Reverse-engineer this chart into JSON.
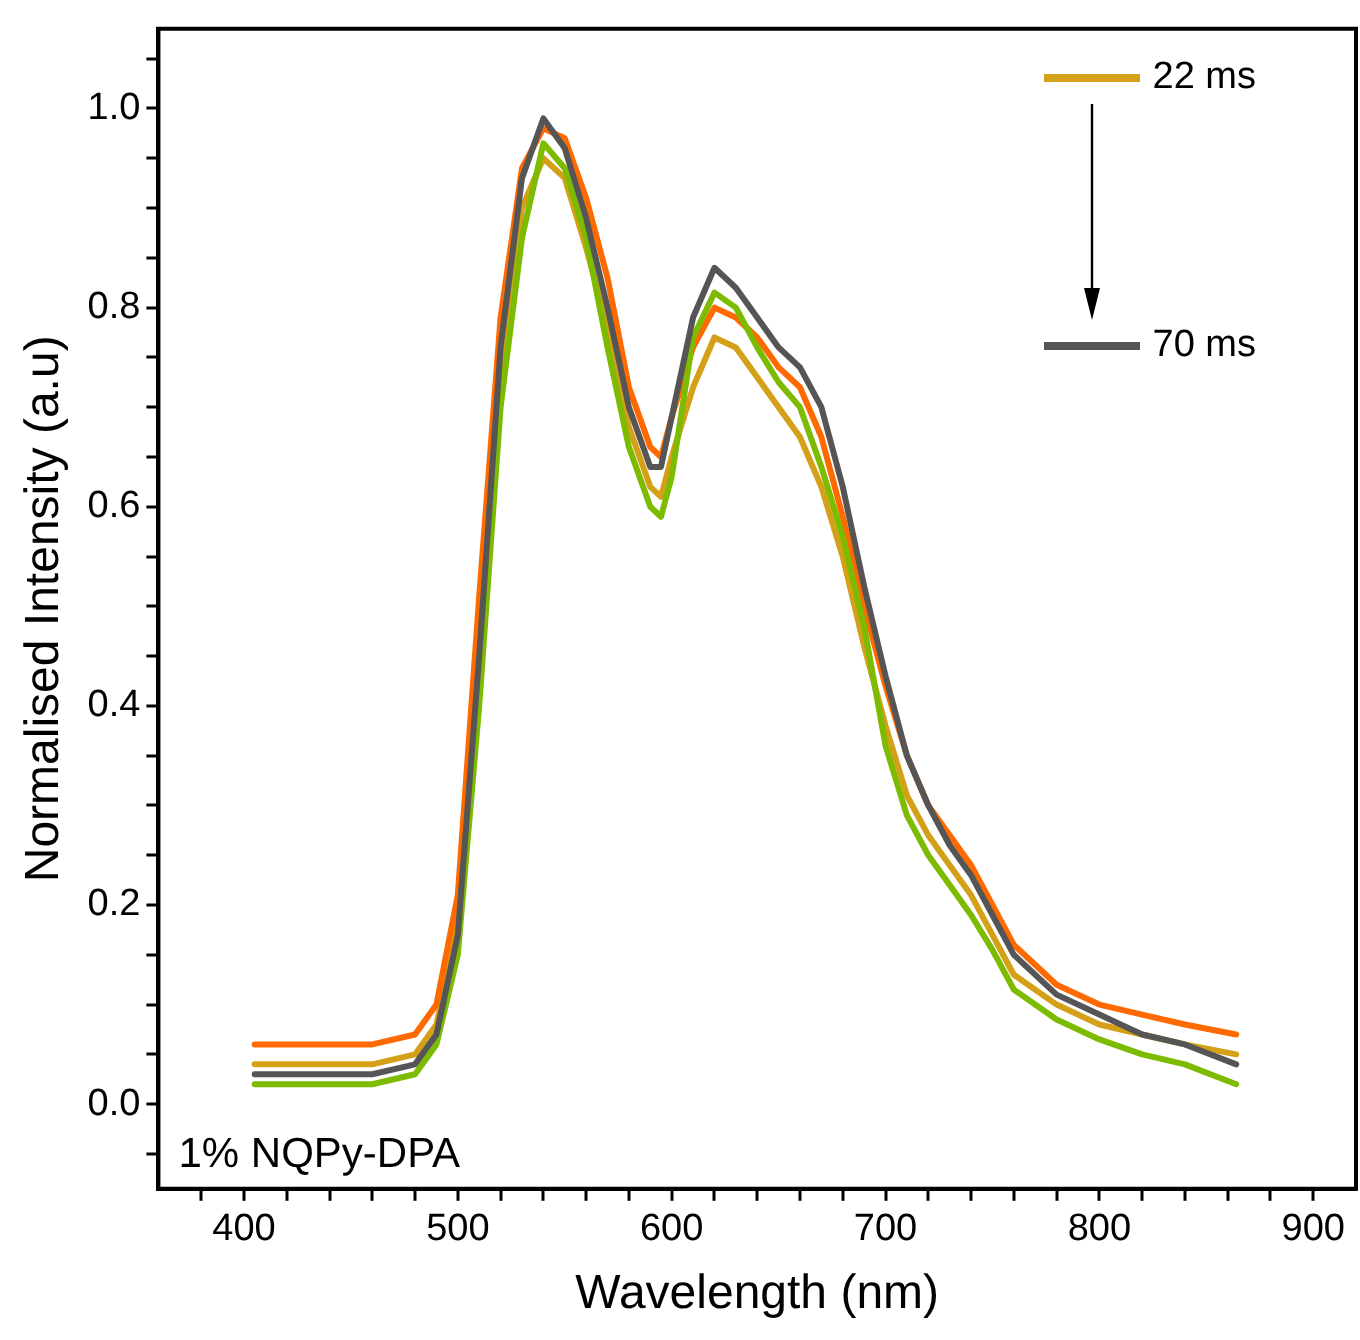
{
  "chart_data": {
    "type": "line",
    "xlabel": "Wavelength (nm)",
    "ylabel": "Normalised Intensity (a.u)",
    "annotations": [
      "1% NQPy-DPA"
    ],
    "x": [
      405,
      420,
      440,
      460,
      480,
      490,
      500,
      510,
      520,
      530,
      540,
      550,
      560,
      570,
      580,
      590,
      595,
      600,
      610,
      620,
      630,
      640,
      650,
      660,
      670,
      680,
      690,
      700,
      710,
      720,
      730,
      740,
      750,
      760,
      780,
      800,
      820,
      840,
      864
    ],
    "series": [
      {
        "name": "22 ms",
        "color": "#d4a017",
        "values": [
          0.04,
          0.04,
          0.04,
          0.04,
          0.05,
          0.08,
          0.18,
          0.45,
          0.74,
          0.9,
          0.95,
          0.93,
          0.86,
          0.78,
          0.68,
          0.62,
          0.61,
          0.65,
          0.72,
          0.77,
          0.76,
          0.73,
          0.7,
          0.67,
          0.62,
          0.55,
          0.46,
          0.38,
          0.31,
          0.27,
          0.24,
          0.21,
          0.17,
          0.13,
          0.1,
          0.08,
          0.07,
          0.06,
          0.05
        ]
      },
      {
        "color": "#ff6a00",
        "values": [
          0.06,
          0.06,
          0.06,
          0.06,
          0.07,
          0.1,
          0.21,
          0.51,
          0.79,
          0.94,
          0.98,
          0.97,
          0.91,
          0.83,
          0.72,
          0.66,
          0.65,
          0.69,
          0.76,
          0.8,
          0.79,
          0.77,
          0.74,
          0.72,
          0.67,
          0.59,
          0.5,
          0.42,
          0.35,
          0.3,
          0.27,
          0.24,
          0.2,
          0.16,
          0.12,
          0.1,
          0.09,
          0.08,
          0.07
        ]
      },
      {
        "color": "#7cbb00",
        "values": [
          0.02,
          0.02,
          0.02,
          0.02,
          0.03,
          0.06,
          0.15,
          0.4,
          0.7,
          0.87,
          0.965,
          0.94,
          0.87,
          0.76,
          0.66,
          0.6,
          0.59,
          0.63,
          0.77,
          0.815,
          0.8,
          0.76,
          0.725,
          0.7,
          0.64,
          0.57,
          0.48,
          0.36,
          0.29,
          0.25,
          0.22,
          0.19,
          0.155,
          0.115,
          0.085,
          0.065,
          0.05,
          0.04,
          0.02
        ]
      },
      {
        "name": "70 ms",
        "color": "#555555",
        "values": [
          0.03,
          0.03,
          0.03,
          0.03,
          0.04,
          0.07,
          0.17,
          0.45,
          0.76,
          0.93,
          0.99,
          0.96,
          0.89,
          0.8,
          0.7,
          0.64,
          0.64,
          0.69,
          0.79,
          0.84,
          0.82,
          0.79,
          0.76,
          0.74,
          0.7,
          0.62,
          0.52,
          0.43,
          0.35,
          0.3,
          0.26,
          0.23,
          0.19,
          0.15,
          0.11,
          0.09,
          0.07,
          0.06,
          0.04
        ]
      }
    ],
    "xlim": [
      360,
      920
    ],
    "xticks": [
      {
        "value": 380,
        "label": null
      },
      400,
      {
        "value": 420,
        "label": null
      },
      {
        "value": 440,
        "label": null
      },
      {
        "value": 460,
        "label": null
      },
      {
        "value": 480,
        "label": null
      },
      500,
      {
        "value": 520,
        "label": null
      },
      {
        "value": 540,
        "label": null
      },
      {
        "value": 560,
        "label": null
      },
      {
        "value": 580,
        "label": null
      },
      600,
      {
        "value": 620,
        "label": null
      },
      {
        "value": 640,
        "label": null
      },
      {
        "value": 660,
        "label": null
      },
      {
        "value": 680,
        "label": null
      },
      700,
      {
        "value": 720,
        "label": null
      },
      {
        "value": 740,
        "label": null
      },
      {
        "value": 760,
        "label": null
      },
      {
        "value": 780,
        "label": null
      },
      800,
      {
        "value": 820,
        "label": null
      },
      {
        "value": 840,
        "label": null
      },
      {
        "value": 860,
        "label": null
      },
      {
        "value": 880,
        "label": null
      },
      900
    ],
    "ylim": [
      -0.085,
      1.08
    ],
    "yticks": [
      {
        "value": -0.05,
        "label": null
      },
      {
        "value": 0,
        "label": "0.0"
      },
      {
        "value": 0.05,
        "label": null
      },
      {
        "value": 0.1,
        "label": null
      },
      {
        "value": 0.15,
        "label": null
      },
      {
        "value": 0.2,
        "label": "0.2"
      },
      {
        "value": 0.25,
        "label": null
      },
      {
        "value": 0.3,
        "label": null
      },
      {
        "value": 0.35,
        "label": null
      },
      {
        "value": 0.4,
        "label": "0.4"
      },
      {
        "value": 0.45,
        "label": null
      },
      {
        "value": 0.5,
        "label": null
      },
      {
        "value": 0.55,
        "label": null
      },
      {
        "value": 0.6,
        "label": "0.6"
      },
      {
        "value": 0.65,
        "label": null
      },
      {
        "value": 0.7,
        "label": null
      },
      {
        "value": 0.75,
        "label": null
      },
      {
        "value": 0.8,
        "label": "0.8"
      },
      {
        "value": 0.85,
        "label": null
      },
      {
        "value": 0.9,
        "label": null
      },
      {
        "value": 0.95,
        "label": null
      },
      {
        "value": 1.0,
        "label": "1.0"
      },
      {
        "value": 1.05,
        "label": null
      }
    ],
    "grid": false,
    "legend": "top right",
    "marker": "none",
    "line_style": "solid"
  }
}
